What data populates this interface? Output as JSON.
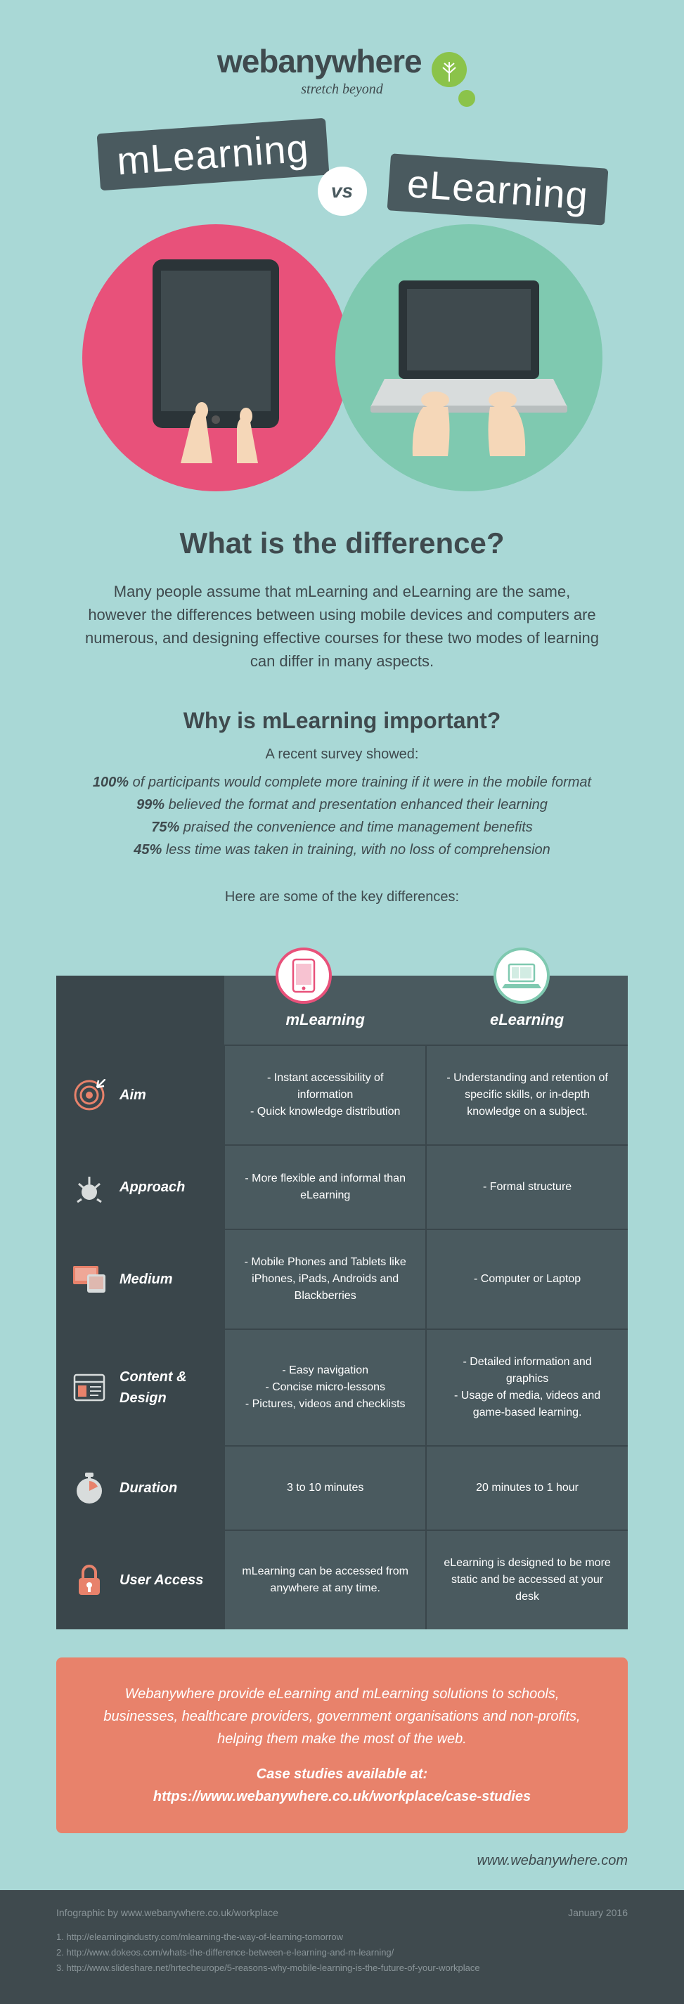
{
  "colors": {
    "background": "#a9d8d6",
    "dark_slate": "#4a5a5f",
    "darker_slate": "#3a464b",
    "pink": "#e8517a",
    "teal_green": "#7fc9b0",
    "coral": "#e8826b",
    "leaf_green": "#8bc34a",
    "text": "#3f4a4e"
  },
  "logo": {
    "brand": "webanywhere",
    "tagline": "stretch beyond"
  },
  "title": {
    "left": "mLearning",
    "right": "eLearning",
    "vs": "vs"
  },
  "heading_main": "What is the difference?",
  "intro": "Many people assume that mLearning and eLearning are the same, however the differences between using mobile devices and computers are numerous, and designing effective courses for these two modes of learning can differ in many aspects.",
  "heading_sub": "Why is mLearning important?",
  "survey_intro": "A recent survey showed:",
  "survey_lines": [
    {
      "pct": "100%",
      "text": " of participants would complete more training if it were in the mobile format"
    },
    {
      "pct": "99%",
      "text": " believed the format and presentation enhanced their learning"
    },
    {
      "pct": "75%",
      "text": " praised the convenience and time management benefits"
    },
    {
      "pct": "45%",
      "text": " less time was taken in training, with no loss of comprehension"
    }
  ],
  "key_diff": "Here are some of the key differences:",
  "table": {
    "col_m": "mLearning",
    "col_e": "eLearning",
    "rows": [
      {
        "label": "Aim",
        "m": "- Instant accessibility of information\n- Quick knowledge distribution",
        "e": "- Understanding and retention of specific skills, or in-depth knowledge on a subject."
      },
      {
        "label": "Approach",
        "m": "- More flexible and informal than eLearning",
        "e": "- Formal structure"
      },
      {
        "label": "Medium",
        "m": "- Mobile Phones and Tablets like iPhones, iPads, Androids and Blackberries",
        "e": "- Computer or Laptop"
      },
      {
        "label": "Content & Design",
        "m": "- Easy navigation\n- Concise micro-lessons\n- Pictures, videos and checklists",
        "e": "- Detailed information and graphics\n- Usage of media, videos and game-based learning."
      },
      {
        "label": "Duration",
        "m": "3 to 10 minutes",
        "e": "20 minutes to 1 hour"
      },
      {
        "label": "User Access",
        "m": "mLearning can be accessed from anywhere at any time.",
        "e": "eLearning is designed to be more static and be accessed at your desk"
      }
    ]
  },
  "cta": {
    "body": "Webanywhere provide eLearning and mLearning solutions to schools, businesses, healthcare providers, government organisations and non-profits, helping them make the most of the web.",
    "case_label": "Case studies available at:",
    "case_url": "https://www.webanywhere.co.uk/workplace/case-studies"
  },
  "footer_url": "www.webanywhere.com",
  "footer": {
    "byline": "Infographic by www.webanywhere.co.uk/workplace",
    "date": "January 2016",
    "refs": [
      "1. http://elearningindustry.com/mlearning-the-way-of-learning-tomorrow",
      "2. http://www.dokeos.com/whats-the-difference-between-e-learning-and-m-learning/",
      "3. http://www.slideshare.net/hrtecheurope/5-reasons-why-mobile-learning-is-the-future-of-your-workplace"
    ]
  }
}
